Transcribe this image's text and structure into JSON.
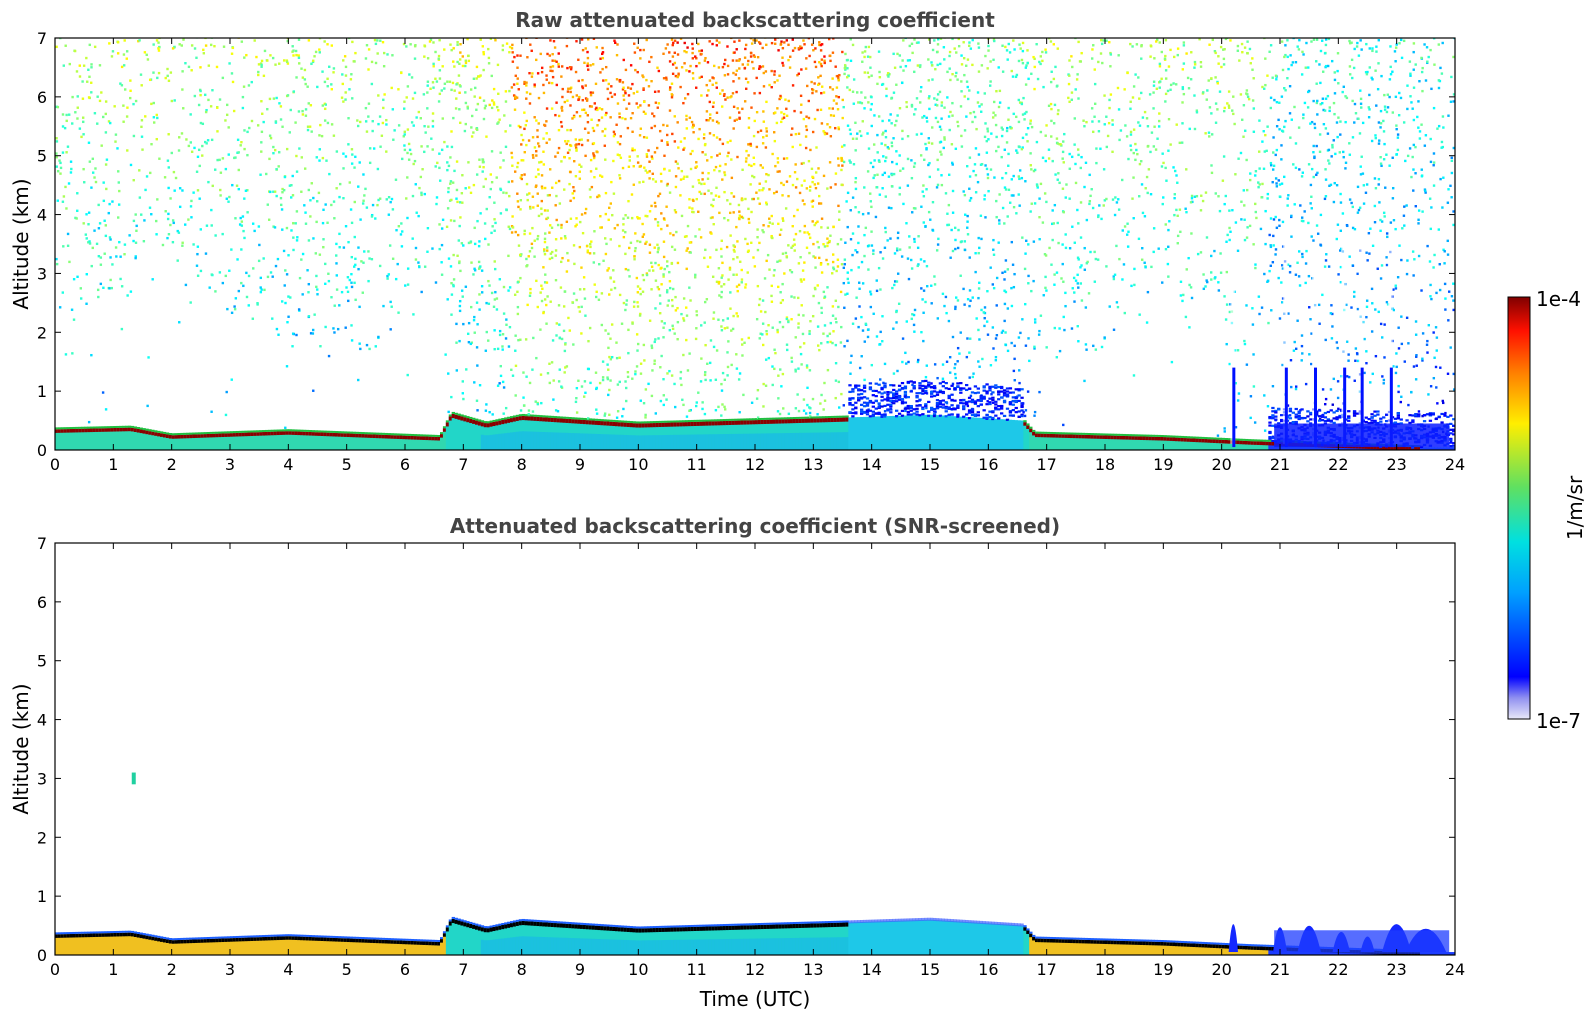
{
  "chart_data": [
    {
      "type": "heatmap",
      "title": "Raw attenuated backscattering coefficient",
      "xlabel": "",
      "ylabel": "Altitude (km)",
      "xlim": [
        0,
        24
      ],
      "ylim": [
        0,
        7
      ],
      "xticks": [
        "0",
        "1",
        "2",
        "3",
        "4",
        "5",
        "6",
        "7",
        "8",
        "9",
        "10",
        "11",
        "12",
        "13",
        "14",
        "15",
        "16",
        "17",
        "18",
        "19",
        "20",
        "21",
        "22",
        "23",
        "24"
      ],
      "yticks": [
        "0",
        "1",
        "2",
        "3",
        "4",
        "5",
        "6",
        "7"
      ],
      "grid": false,
      "features": {
        "boundary_layer_top_km": [
          {
            "t": 0,
            "z": 0.35
          },
          {
            "t": 1.3,
            "z": 0.38
          },
          {
            "t": 2,
            "z": 0.25
          },
          {
            "t": 4,
            "z": 0.32
          },
          {
            "t": 6.6,
            "z": 0.22
          },
          {
            "t": 6.8,
            "z": 0.62
          },
          {
            "t": 7.4,
            "z": 0.45
          },
          {
            "t": 8,
            "z": 0.58
          },
          {
            "t": 10,
            "z": 0.45
          },
          {
            "t": 13.5,
            "z": 0.55
          },
          {
            "t": 15,
            "z": 0.6
          },
          {
            "t": 16.6,
            "z": 0.5
          },
          {
            "t": 16.8,
            "z": 0.28
          },
          {
            "t": 19,
            "z": 0.22
          },
          {
            "t": 20.5,
            "z": 0.15
          },
          {
            "t": 23.3,
            "z": 0.05
          }
        ],
        "high_noise_period_utc": [
          7.8,
          13.5
        ],
        "low_cloud_streaks_utc": [
          20.2,
          21.1,
          21.6,
          22.1,
          22.4,
          22.9
        ]
      }
    },
    {
      "type": "heatmap",
      "title": "Attenuated backscattering coefficient (SNR-screened)",
      "xlabel": "Time (UTC)",
      "ylabel": "Altitude (km)",
      "xlim": [
        0,
        24
      ],
      "ylim": [
        0,
        7
      ],
      "xticks": [
        "0",
        "1",
        "2",
        "3",
        "4",
        "5",
        "6",
        "7",
        "8",
        "9",
        "10",
        "11",
        "12",
        "13",
        "14",
        "15",
        "16",
        "17",
        "18",
        "19",
        "20",
        "21",
        "22",
        "23",
        "24"
      ],
      "yticks": [
        "0",
        "1",
        "2",
        "3",
        "4",
        "5",
        "6",
        "7"
      ],
      "grid": false,
      "features": {
        "noise_screened": true,
        "isolated_echo": {
          "t": 1.35,
          "z": 3.0
        }
      }
    }
  ],
  "colorbar": {
    "label": "1/m/sr",
    "max_label": "1e-4",
    "min_label": "1e-7",
    "scale": "log",
    "range": [
      1e-07,
      0.0001
    ],
    "colormap": "jet"
  }
}
